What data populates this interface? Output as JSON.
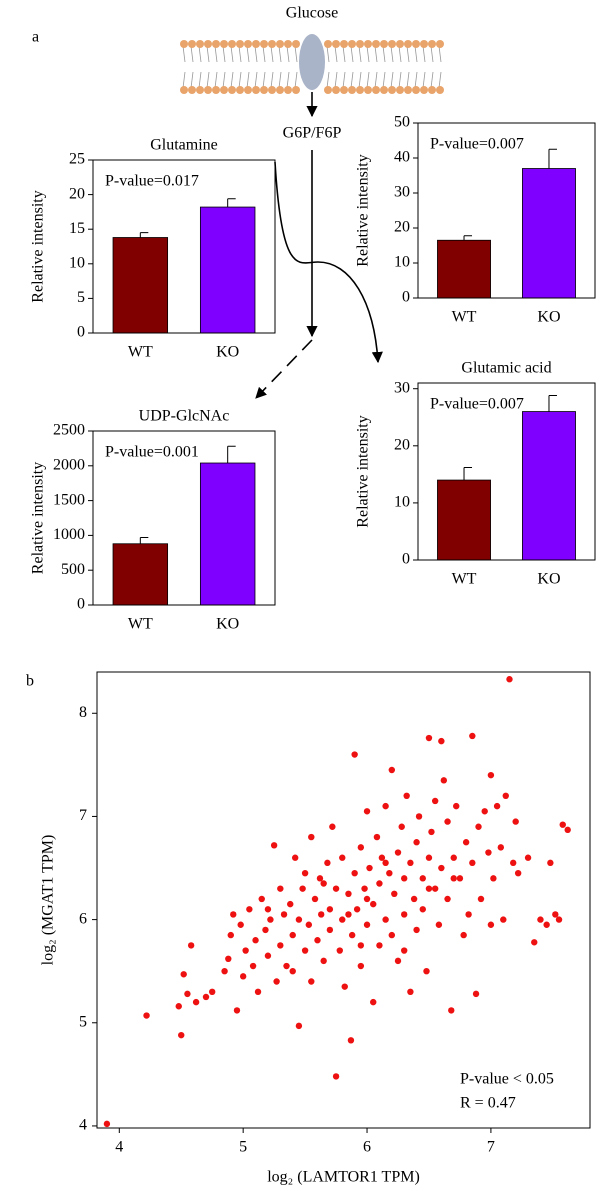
{
  "figure": {
    "panel_a": "a",
    "panel_b": "b",
    "glucose": "Glucose",
    "g6p": "G6P/F6P"
  },
  "chart_data": [
    {
      "type": "bar",
      "title": "Glutamine",
      "ylabel": "Relative intensity",
      "annotation": "P-value=0.017",
      "categories": [
        "WT",
        "KO"
      ],
      "values": [
        13.8,
        18.2
      ],
      "errors": [
        0.7,
        1.2
      ],
      "colors": [
        "#800000",
        "#8000ff"
      ],
      "ylim": [
        0,
        25
      ],
      "yticks": [
        0,
        5,
        10,
        15,
        20,
        25
      ]
    },
    {
      "type": "bar",
      "ylabel": "Relative intensity",
      "annotation": "P-value=0.007",
      "categories": [
        "WT",
        "KO"
      ],
      "values": [
        16.5,
        37
      ],
      "errors": [
        1.3,
        5.5
      ],
      "colors": [
        "#800000",
        "#8000ff"
      ],
      "ylim": [
        0,
        50
      ],
      "yticks": [
        0,
        10,
        20,
        30,
        40,
        50
      ]
    },
    {
      "type": "bar",
      "title": "UDP-GlcNAc",
      "ylabel": "Relative intensity",
      "annotation": "P-value=0.001",
      "categories": [
        "WT",
        "KO"
      ],
      "values": [
        880,
        2040
      ],
      "errors": [
        90,
        240
      ],
      "colors": [
        "#800000",
        "#8000ff"
      ],
      "ylim": [
        0,
        2500
      ],
      "yticks": [
        0,
        500,
        1000,
        1500,
        2000,
        2500
      ]
    },
    {
      "type": "bar",
      "title": "Glutamic acid",
      "ylabel": "Relative intensity",
      "annotation": "P-value=0.007",
      "categories": [
        "WT",
        "KO"
      ],
      "values": [
        14,
        26
      ],
      "errors": [
        2.2,
        2.8
      ],
      "colors": [
        "#800000",
        "#8000ff"
      ],
      "ylim": [
        0,
        31
      ],
      "yticks": [
        0,
        10,
        20,
        30
      ]
    },
    {
      "type": "scatter",
      "xlabel": "log₂ (LAMTOR1 TPM)",
      "ylabel": "log₂ (MGAT1 TPM)",
      "annotations": [
        "P-value < 0.05",
        "R = 0.47"
      ],
      "color": "#ee1111",
      "xlim": [
        3.82,
        7.8
      ],
      "ylim": [
        3.98,
        8.4
      ],
      "xticks": [
        4,
        5,
        6,
        7
      ],
      "yticks": [
        4,
        5,
        6,
        7,
        8
      ],
      "x": [
        3.9,
        4.22,
        4.48,
        4.5,
        4.52,
        4.55,
        4.58,
        4.62,
        4.7,
        4.75,
        4.85,
        4.88,
        4.9,
        4.92,
        4.95,
        4.98,
        5.0,
        5.02,
        5.05,
        5.08,
        5.1,
        5.12,
        5.15,
        5.18,
        5.2,
        5.22,
        5.25,
        5.27,
        5.3,
        5.3,
        5.33,
        5.35,
        5.38,
        5.4,
        5.42,
        5.45,
        5.45,
        5.48,
        5.5,
        5.5,
        5.53,
        5.55,
        5.55,
        5.58,
        5.6,
        5.62,
        5.63,
        5.65,
        5.68,
        5.7,
        5.7,
        5.72,
        5.75,
        5.75,
        5.78,
        5.8,
        5.8,
        5.82,
        5.85,
        5.87,
        5.88,
        5.9,
        5.9,
        5.92,
        5.95,
        5.95,
        5.98,
        6.0,
        6.0,
        6.02,
        6.05,
        6.05,
        6.08,
        6.1,
        6.1,
        6.12,
        6.15,
        6.15,
        6.18,
        6.2,
        6.2,
        6.22,
        6.25,
        6.25,
        6.28,
        6.3,
        6.3,
        6.32,
        6.35,
        6.35,
        6.38,
        6.4,
        6.4,
        6.42,
        6.45,
        6.45,
        6.48,
        6.5,
        6.5,
        6.52,
        6.55,
        6.55,
        6.58,
        6.6,
        6.6,
        6.62,
        6.65,
        6.65,
        6.68,
        6.7,
        6.72,
        6.75,
        6.78,
        6.8,
        6.82,
        6.85,
        6.85,
        6.88,
        6.9,
        6.92,
        6.95,
        6.98,
        7.0,
        7.0,
        7.02,
        7.05,
        7.08,
        7.1,
        7.12,
        7.15,
        7.18,
        7.2,
        7.22,
        7.3,
        7.35,
        7.4,
        7.45,
        7.48,
        7.52,
        7.55,
        7.58,
        7.62,
        6.0,
        5.65,
        6.3,
        5.85,
        6.5,
        5.4,
        6.15,
        5.95,
        6.7,
        5.2
      ],
      "y": [
        4.02,
        5.07,
        5.16,
        4.88,
        5.47,
        5.28,
        5.75,
        5.2,
        5.25,
        5.3,
        5.5,
        5.62,
        5.85,
        6.05,
        5.12,
        5.95,
        5.45,
        5.7,
        6.1,
        5.55,
        5.8,
        5.3,
        6.2,
        5.9,
        5.65,
        6.0,
        6.72,
        5.4,
        6.3,
        5.75,
        6.05,
        5.55,
        6.15,
        5.85,
        6.6,
        4.97,
        6.0,
        6.3,
        5.7,
        6.45,
        5.95,
        6.8,
        5.4,
        6.2,
        5.8,
        6.4,
        6.05,
        5.6,
        6.55,
        6.1,
        5.9,
        6.9,
        4.48,
        6.3,
        5.7,
        6.0,
        6.6,
        5.35,
        6.25,
        4.83,
        5.85,
        7.6,
        6.45,
        6.1,
        5.55,
        6.7,
        6.3,
        5.95,
        7.05,
        6.5,
        6.15,
        5.2,
        6.8,
        6.35,
        5.75,
        6.6,
        6.0,
        7.1,
        6.45,
        5.85,
        7.45,
        6.25,
        6.65,
        5.6,
        6.9,
        6.4,
        6.05,
        7.2,
        6.55,
        5.3,
        6.2,
        6.75,
        5.9,
        7.0,
        6.4,
        6.1,
        5.5,
        7.76,
        6.6,
        6.85,
        6.3,
        7.15,
        5.95,
        7.73,
        6.5,
        7.35,
        6.2,
        6.95,
        5.12,
        6.6,
        7.1,
        6.4,
        5.85,
        6.75,
        6.05,
        7.78,
        6.55,
        5.28,
        6.9,
        6.2,
        7.05,
        6.65,
        7.4,
        5.95,
        6.4,
        7.1,
        6.7,
        6.0,
        7.2,
        8.33,
        6.55,
        6.95,
        6.45,
        6.6,
        5.78,
        6.0,
        5.95,
        6.55,
        6.05,
        6.0,
        6.92,
        6.87,
        6.2,
        6.35,
        5.7,
        6.05,
        6.3,
        5.5,
        6.55,
        5.75,
        6.4,
        6.1
      ]
    }
  ]
}
